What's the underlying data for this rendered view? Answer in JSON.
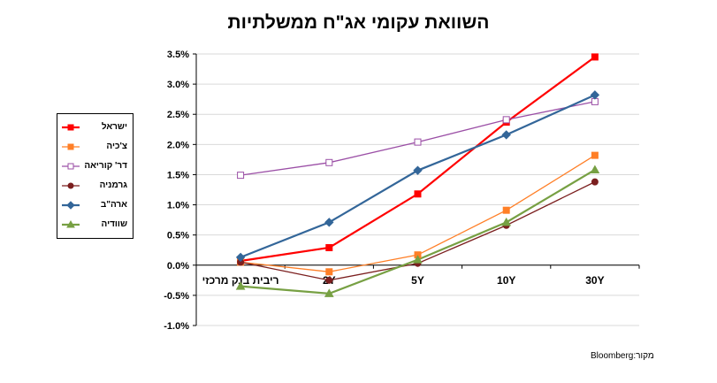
{
  "title": "השוואת עקומי אג\"ח ממשלתיות",
  "source": "מקור:Bloomberg",
  "chart_data": {
    "type": "line",
    "title": "השוואת עקומי אג\"ח ממשלתיות",
    "categories": [
      "ריבית בנק מרכזי",
      "2Y",
      "5Y",
      "10Y",
      "30Y"
    ],
    "ylim": [
      -1.0,
      3.5
    ],
    "ytick_labels": [
      "3.5%",
      "3.0%",
      "2.5%",
      "2.0%",
      "1.5%",
      "1.0%",
      "0.5%",
      "0.0%",
      "-0.5%",
      "-1.0%"
    ],
    "grid": true,
    "legend_position": "left",
    "series": [
      {
        "name": "ישראל",
        "color": "#ff0000",
        "marker": "square",
        "filled": true,
        "width": 2.2,
        "values": [
          0.07,
          0.29,
          1.18,
          2.37,
          3.45
        ]
      },
      {
        "name": "צ'כיה",
        "color": "#ff7f27",
        "marker": "square",
        "filled": true,
        "width": 1.3,
        "values": [
          0.05,
          -0.11,
          0.17,
          0.91,
          1.82
        ]
      },
      {
        "name": "דר' קוריאה",
        "color": "#9b4fa6",
        "marker": "square",
        "filled": false,
        "width": 1.3,
        "values": [
          1.49,
          1.7,
          2.04,
          2.41,
          2.71
        ]
      },
      {
        "name": "גרמניה",
        "color": "#7b1f1f",
        "marker": "circle",
        "filled": true,
        "width": 1.3,
        "values": [
          0.05,
          -0.25,
          0.03,
          0.66,
          1.38
        ]
      },
      {
        "name": "ארה\"ב",
        "color": "#336699",
        "marker": "diamond",
        "filled": true,
        "width": 2.2,
        "values": [
          0.13,
          0.71,
          1.57,
          2.16,
          2.82
        ]
      },
      {
        "name": "שוודיה",
        "color": "#77a043",
        "marker": "triangle",
        "filled": true,
        "width": 2.2,
        "values": [
          -0.35,
          -0.47,
          0.09,
          0.71,
          1.58
        ]
      }
    ]
  }
}
